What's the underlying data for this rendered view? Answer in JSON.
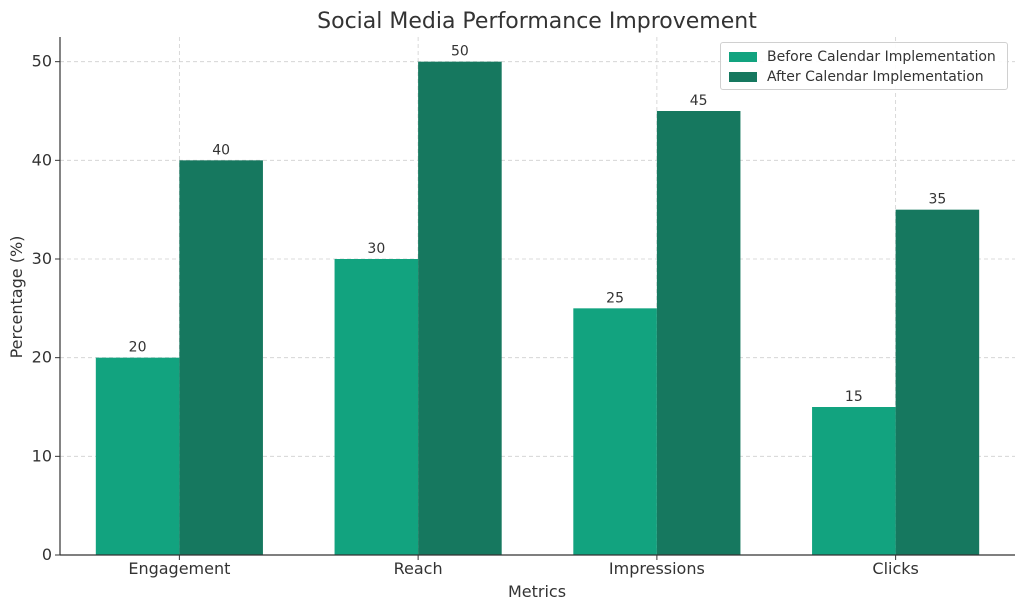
{
  "chart_data": {
    "type": "bar",
    "title": "Social Media Performance Improvement",
    "xlabel": "Metrics",
    "ylabel": "Percentage (%)",
    "categories": [
      "Engagement",
      "Reach",
      "Impressions",
      "Clicks"
    ],
    "series": [
      {
        "name": "Before Calendar Implementation",
        "values": [
          20,
          30,
          25,
          15
        ],
        "color": "#12a37f"
      },
      {
        "name": "After Calendar Implementation",
        "values": [
          40,
          50,
          45,
          35
        ],
        "color": "#16785f"
      }
    ],
    "ylim": [
      0,
      52.5
    ],
    "yticks": [
      0,
      10,
      20,
      30,
      40,
      50
    ],
    "grid": true,
    "legend_position": "top-right",
    "data_labels": true
  }
}
